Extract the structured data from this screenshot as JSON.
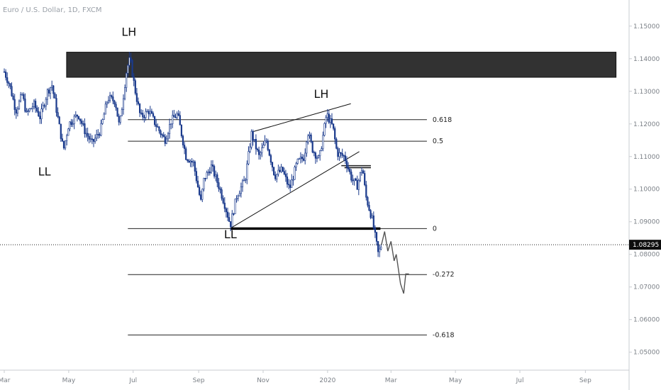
{
  "chart_data": {
    "type": "candlestick",
    "title": "Euro / U.S. Dollar, 1D, FXCM",
    "y_axis": {
      "side": "right",
      "range": [
        1.0445,
        1.158
      ],
      "ticks": [
        "1.15000",
        "1.14000",
        "1.13000",
        "1.12000",
        "1.11000",
        "1.10000",
        "1.09000",
        "1.08000",
        "1.07000",
        "1.06000",
        "1.05000"
      ]
    },
    "x_axis": {
      "ticks": [
        "Mar",
        "May",
        "Jul",
        "Sep",
        "Nov",
        "2020",
        "Mar",
        "May",
        "Jul",
        "Sep"
      ],
      "tick_dates": [
        "2019-03-01",
        "2019-05-01",
        "2019-07-01",
        "2019-09-01",
        "2019-11-01",
        "2020-01-01",
        "2020-03-01",
        "2020-05-01",
        "2020-07-01",
        "2020-09-01"
      ]
    },
    "current_price": {
      "label": "1.08295",
      "value": 1.08295
    },
    "price_path": [
      [
        "2019-03-01",
        1.136
      ],
      [
        "2019-03-06",
        1.132
      ],
      [
        "2019-03-12",
        1.124
      ],
      [
        "2019-03-18",
        1.129
      ],
      [
        "2019-03-22",
        1.123
      ],
      [
        "2019-03-29",
        1.126
      ],
      [
        "2019-04-04",
        1.122
      ],
      [
        "2019-04-11",
        1.13
      ],
      [
        "2019-04-15",
        1.132
      ],
      [
        "2019-04-19",
        1.125
      ],
      [
        "2019-04-26",
        1.112
      ],
      [
        "2019-05-01",
        1.12
      ],
      [
        "2019-05-10",
        1.123
      ],
      [
        "2019-05-16",
        1.118
      ],
      [
        "2019-05-23",
        1.114
      ],
      [
        "2019-05-31",
        1.118
      ],
      [
        "2019-06-07",
        1.128
      ],
      [
        "2019-06-14",
        1.127
      ],
      [
        "2019-06-18",
        1.119
      ],
      [
        "2019-06-25",
        1.137
      ],
      [
        "2019-06-28",
        1.14
      ],
      [
        "2019-07-03",
        1.13
      ],
      [
        "2019-07-08",
        1.122
      ],
      [
        "2019-07-16",
        1.124
      ],
      [
        "2019-07-22",
        1.12
      ],
      [
        "2019-07-31",
        1.115
      ],
      [
        "2019-08-06",
        1.121
      ],
      [
        "2019-08-12",
        1.123
      ],
      [
        "2019-08-20",
        1.11
      ],
      [
        "2019-08-27",
        1.108
      ],
      [
        "2019-09-03",
        1.096
      ],
      [
        "2019-09-06",
        1.103
      ],
      [
        "2019-09-13",
        1.107
      ],
      [
        "2019-09-20",
        1.101
      ],
      [
        "2019-09-25",
        1.096
      ],
      [
        "2019-10-01",
        1.089
      ],
      [
        "2019-10-07",
        1.098
      ],
      [
        "2019-10-15",
        1.103
      ],
      [
        "2019-10-21",
        1.117
      ],
      [
        "2019-10-28",
        1.11
      ],
      [
        "2019-11-04",
        1.115
      ],
      [
        "2019-11-12",
        1.104
      ],
      [
        "2019-11-19",
        1.106
      ],
      [
        "2019-11-26",
        1.1
      ],
      [
        "2019-12-03",
        1.108
      ],
      [
        "2019-12-10",
        1.11
      ],
      [
        "2019-12-13",
        1.118
      ],
      [
        "2019-12-18",
        1.112
      ],
      [
        "2019-12-24",
        1.109
      ],
      [
        "2019-12-31",
        1.123
      ],
      [
        "2020-01-06",
        1.119
      ],
      [
        "2020-01-10",
        1.111
      ],
      [
        "2020-01-17",
        1.11
      ],
      [
        "2020-01-24",
        1.103
      ],
      [
        "2020-01-29",
        1.101
      ],
      [
        "2020-02-03",
        1.107
      ],
      [
        "2020-02-06",
        1.098
      ],
      [
        "2020-02-12",
        1.091
      ],
      [
        "2020-02-18",
        1.08
      ],
      [
        "2020-02-21",
        1.083
      ]
    ],
    "projection_path": [
      [
        "2020-02-21",
        1.083
      ],
      [
        "2020-02-24",
        1.087
      ],
      [
        "2020-02-27",
        1.081
      ],
      [
        "2020-03-01",
        1.084
      ],
      [
        "2020-03-04",
        1.078
      ],
      [
        "2020-03-06",
        1.08
      ],
      [
        "2020-03-10",
        1.071
      ],
      [
        "2020-03-13",
        1.068
      ],
      [
        "2020-03-15",
        1.074
      ],
      [
        "2020-03-18",
        1.074
      ]
    ],
    "resistance_zone": {
      "x_range": [
        "2019-04-29",
        "2020-09-30"
      ],
      "y_range": [
        1.1343,
        1.142
      ]
    },
    "fibonacci_levels": [
      {
        "label": "0.618",
        "price": 1.1213
      },
      {
        "label": "0.5",
        "price": 1.1147
      },
      {
        "label": "0",
        "price": 1.0879
      },
      {
        "label": "-0.272",
        "price": 1.0738
      },
      {
        "label": "-0.618",
        "price": 1.0553
      }
    ],
    "fib_x_range": [
      "2019-06-26",
      "2020-04-04"
    ],
    "support_line": {
      "x_range": [
        "2019-10-01",
        "2020-02-20"
      ],
      "price": 1.0879
    },
    "small_ranges": [
      {
        "x_range": [
          "2020-01-17",
          "2020-02-11"
        ],
        "price": 1.1066
      },
      {
        "x_range": [
          "2020-01-14",
          "2020-02-11"
        ],
        "price": 1.1072
      }
    ],
    "trendlines": [
      {
        "from": [
          "2019-10-01",
          1.088
        ],
        "to": [
          "2020-01-31",
          1.1115
        ]
      },
      {
        "from": [
          "2019-10-21",
          1.1175
        ],
        "to": [
          "2020-01-23",
          1.1262
        ]
      }
    ],
    "annotations": [
      {
        "text": "LH",
        "date": "2019-06-27",
        "price": 1.147
      },
      {
        "text": "LL",
        "date": "2019-04-08",
        "price": 1.1042
      },
      {
        "text": "LH",
        "date": "2019-12-26",
        "price": 1.128
      },
      {
        "text": "LL",
        "date": "2019-10-01",
        "price": 1.0849
      }
    ],
    "colors": {
      "candle": "#1a3a8c",
      "zone": "#323232",
      "projection": "#555555"
    }
  }
}
